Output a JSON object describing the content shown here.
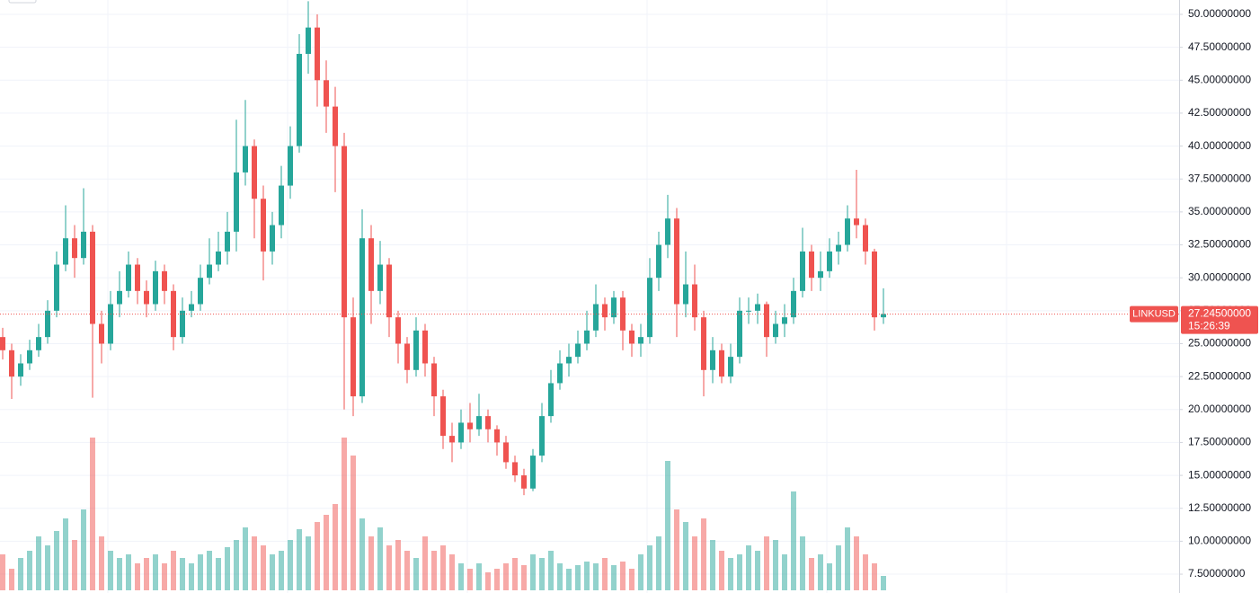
{
  "chart_data": {
    "type": "candlestick",
    "symbol": "LINKUSD",
    "last_price": 27.245,
    "last_price_label": "27.24500000",
    "countdown": "15:26:39",
    "up_color": "#26a69a",
    "down_color": "#ef5350",
    "ylim": [
      6.07,
      51.09
    ],
    "yticks": [
      {
        "value": 50,
        "label": "50.00000000"
      },
      {
        "value": 47.5,
        "label": "47.50000000"
      },
      {
        "value": 45,
        "label": "45.00000000"
      },
      {
        "value": 42.5,
        "label": "42.50000000"
      },
      {
        "value": 40,
        "label": "40.00000000"
      },
      {
        "value": 37.5,
        "label": "37.50000000"
      },
      {
        "value": 35,
        "label": "35.00000000"
      },
      {
        "value": 32.5,
        "label": "32.50000000"
      },
      {
        "value": 30,
        "label": "30.00000000"
      },
      {
        "value": 27.5,
        "label": "27.50000000"
      },
      {
        "value": 25,
        "label": "25.00000000"
      },
      {
        "value": 22.5,
        "label": "22.50000000"
      },
      {
        "value": 20,
        "label": "20.00000000"
      },
      {
        "value": 17.5,
        "label": "17.50000000"
      },
      {
        "value": 15,
        "label": "15.00000000"
      },
      {
        "value": 12.5,
        "label": "12.50000000"
      },
      {
        "value": 10,
        "label": "10.00000000"
      },
      {
        "value": 7.5,
        "label": "7.50000000"
      }
    ],
    "grid": true,
    "volume_lim": [
      0,
      100
    ],
    "candles": [
      [
        25.5,
        26.2,
        23.8,
        24.5
      ],
      [
        24.5,
        25,
        20.8,
        22.5
      ],
      [
        22.5,
        24.2,
        21.8,
        23.5
      ],
      [
        23.5,
        25.3,
        23,
        24.5
      ],
      [
        24.5,
        26.5,
        24,
        25.5
      ],
      [
        25.5,
        28.3,
        25,
        27.5
      ],
      [
        27.5,
        32,
        27,
        31
      ],
      [
        31,
        35.5,
        30.5,
        33
      ],
      [
        33,
        34,
        30,
        31.5
      ],
      [
        31.5,
        36.8,
        31,
        33.5
      ],
      [
        33.5,
        34,
        20.9,
        26.5
      ],
      [
        26.5,
        27.5,
        23.5,
        25
      ],
      [
        25,
        29,
        24.5,
        28
      ],
      [
        28,
        30.5,
        27,
        29
      ],
      [
        29,
        32,
        28.5,
        31
      ],
      [
        31,
        31.5,
        28,
        29
      ],
      [
        29,
        29.8,
        27,
        28
      ],
      [
        28,
        31.3,
        27.5,
        30.5
      ],
      [
        30.5,
        31,
        28,
        29
      ],
      [
        29,
        29.5,
        24.5,
        25.5
      ],
      [
        25.5,
        28.5,
        25,
        27.5
      ],
      [
        27.5,
        29,
        27,
        28
      ],
      [
        28,
        31,
        27.5,
        30
      ],
      [
        30,
        33,
        29.5,
        31
      ],
      [
        31,
        33.5,
        30.5,
        32
      ],
      [
        32,
        35,
        31,
        33.5
      ],
      [
        33.5,
        42,
        32,
        38
      ],
      [
        38,
        43.5,
        37,
        40
      ],
      [
        40,
        40.5,
        33,
        36
      ],
      [
        36,
        37,
        29.8,
        32
      ],
      [
        32,
        35,
        31,
        34
      ],
      [
        34,
        38.5,
        33,
        37
      ],
      [
        37,
        41.5,
        36,
        40
      ],
      [
        40,
        48.5,
        39.5,
        47
      ],
      [
        47,
        51,
        45.5,
        49
      ],
      [
        49,
        50,
        43,
        45
      ],
      [
        45,
        46.5,
        41,
        43
      ],
      [
        43,
        44.5,
        36.5,
        40
      ],
      [
        40,
        41,
        20,
        27
      ],
      [
        27,
        28.5,
        19.5,
        21
      ],
      [
        21,
        35.2,
        20.5,
        33
      ],
      [
        33,
        34,
        26.5,
        29
      ],
      [
        29,
        32.8,
        28,
        31
      ],
      [
        31,
        31.5,
        25.5,
        27
      ],
      [
        27,
        27.5,
        23.5,
        25
      ],
      [
        25,
        25.5,
        22,
        23
      ],
      [
        23,
        27,
        22.5,
        26
      ],
      [
        26,
        26.5,
        22.5,
        23.5
      ],
      [
        23.5,
        24,
        19.5,
        21
      ],
      [
        21,
        21.5,
        17,
        18
      ],
      [
        18,
        19,
        16,
        17.5
      ],
      [
        17.5,
        20,
        17,
        19
      ],
      [
        19,
        20.5,
        17.5,
        18.5
      ],
      [
        18.5,
        21.2,
        18,
        19.5
      ],
      [
        19.5,
        20,
        17.5,
        18.5
      ],
      [
        18.5,
        18.8,
        16.5,
        17.5
      ],
      [
        17.5,
        18,
        15.5,
        16
      ],
      [
        16,
        16.5,
        14.5,
        15
      ],
      [
        15,
        15.5,
        13.5,
        14
      ],
      [
        14,
        17,
        13.8,
        16.5
      ],
      [
        16.5,
        20.5,
        16,
        19.5
      ],
      [
        19.5,
        23,
        19,
        22
      ],
      [
        22,
        24.5,
        21.5,
        23.5
      ],
      [
        23.5,
        25,
        22.5,
        24
      ],
      [
        24,
        26,
        23.5,
        25
      ],
      [
        25,
        27.5,
        24.5,
        26
      ],
      [
        26,
        29.5,
        25.5,
        28
      ],
      [
        28,
        28.5,
        26,
        27
      ],
      [
        27,
        29,
        26.5,
        28.5
      ],
      [
        28.5,
        29,
        24.5,
        26
      ],
      [
        26,
        26.5,
        24,
        25
      ],
      [
        25,
        26.5,
        24,
        25.5
      ],
      [
        25.5,
        31.5,
        25,
        30
      ],
      [
        30,
        33.5,
        29,
        32.5
      ],
      [
        32.5,
        36.3,
        31.5,
        34.5
      ],
      [
        34.5,
        35.3,
        25.5,
        28
      ],
      [
        28,
        32,
        27,
        29.5
      ],
      [
        29.5,
        31,
        26,
        27
      ],
      [
        27,
        27.5,
        21,
        23
      ],
      [
        23,
        25.5,
        22,
        24.5
      ],
      [
        24.5,
        25,
        22,
        22.5
      ],
      [
        22.5,
        25,
        22,
        24
      ],
      [
        24,
        28.5,
        23.5,
        27.5
      ],
      [
        27.5,
        28.5,
        26.5,
        27.5
      ],
      [
        27.5,
        28.8,
        26.5,
        28
      ],
      [
        28,
        28.2,
        24,
        25.5
      ],
      [
        25.5,
        27.5,
        25,
        26.5
      ],
      [
        26.5,
        28,
        25.5,
        27
      ],
      [
        27,
        30,
        26.5,
        29
      ],
      [
        29,
        33.8,
        28.5,
        32
      ],
      [
        32,
        32.5,
        29,
        30
      ],
      [
        30,
        32,
        29,
        30.5
      ],
      [
        30.5,
        33,
        30,
        32
      ],
      [
        32,
        33.5,
        31,
        32.5
      ],
      [
        32.5,
        35.5,
        32,
        34.5
      ],
      [
        34.5,
        38.2,
        33,
        34
      ],
      [
        34,
        34.5,
        31,
        32
      ],
      [
        32,
        32.2,
        26,
        27
      ],
      [
        27,
        29.2,
        26.5,
        27.245
      ]
    ],
    "volumes": [
      20,
      12,
      18,
      22,
      30,
      25,
      33,
      40,
      28,
      45,
      85,
      30,
      22,
      18,
      20,
      15,
      18,
      20,
      15,
      22,
      18,
      15,
      20,
      22,
      18,
      24,
      28,
      35,
      30,
      25,
      20,
      22,
      28,
      34,
      30,
      38,
      42,
      48,
      85,
      75,
      40,
      30,
      35,
      25,
      28,
      22,
      18,
      30,
      22,
      25,
      20,
      15,
      12,
      15,
      10,
      12,
      15,
      18,
      14,
      20,
      18,
      22,
      15,
      12,
      14,
      16,
      15,
      18,
      14,
      16,
      12,
      20,
      25,
      30,
      72,
      45,
      38,
      30,
      40,
      28,
      22,
      18,
      20,
      25,
      22,
      30,
      28,
      20,
      55,
      30,
      18,
      20,
      15,
      25,
      35,
      30,
      20,
      15,
      8
    ]
  }
}
